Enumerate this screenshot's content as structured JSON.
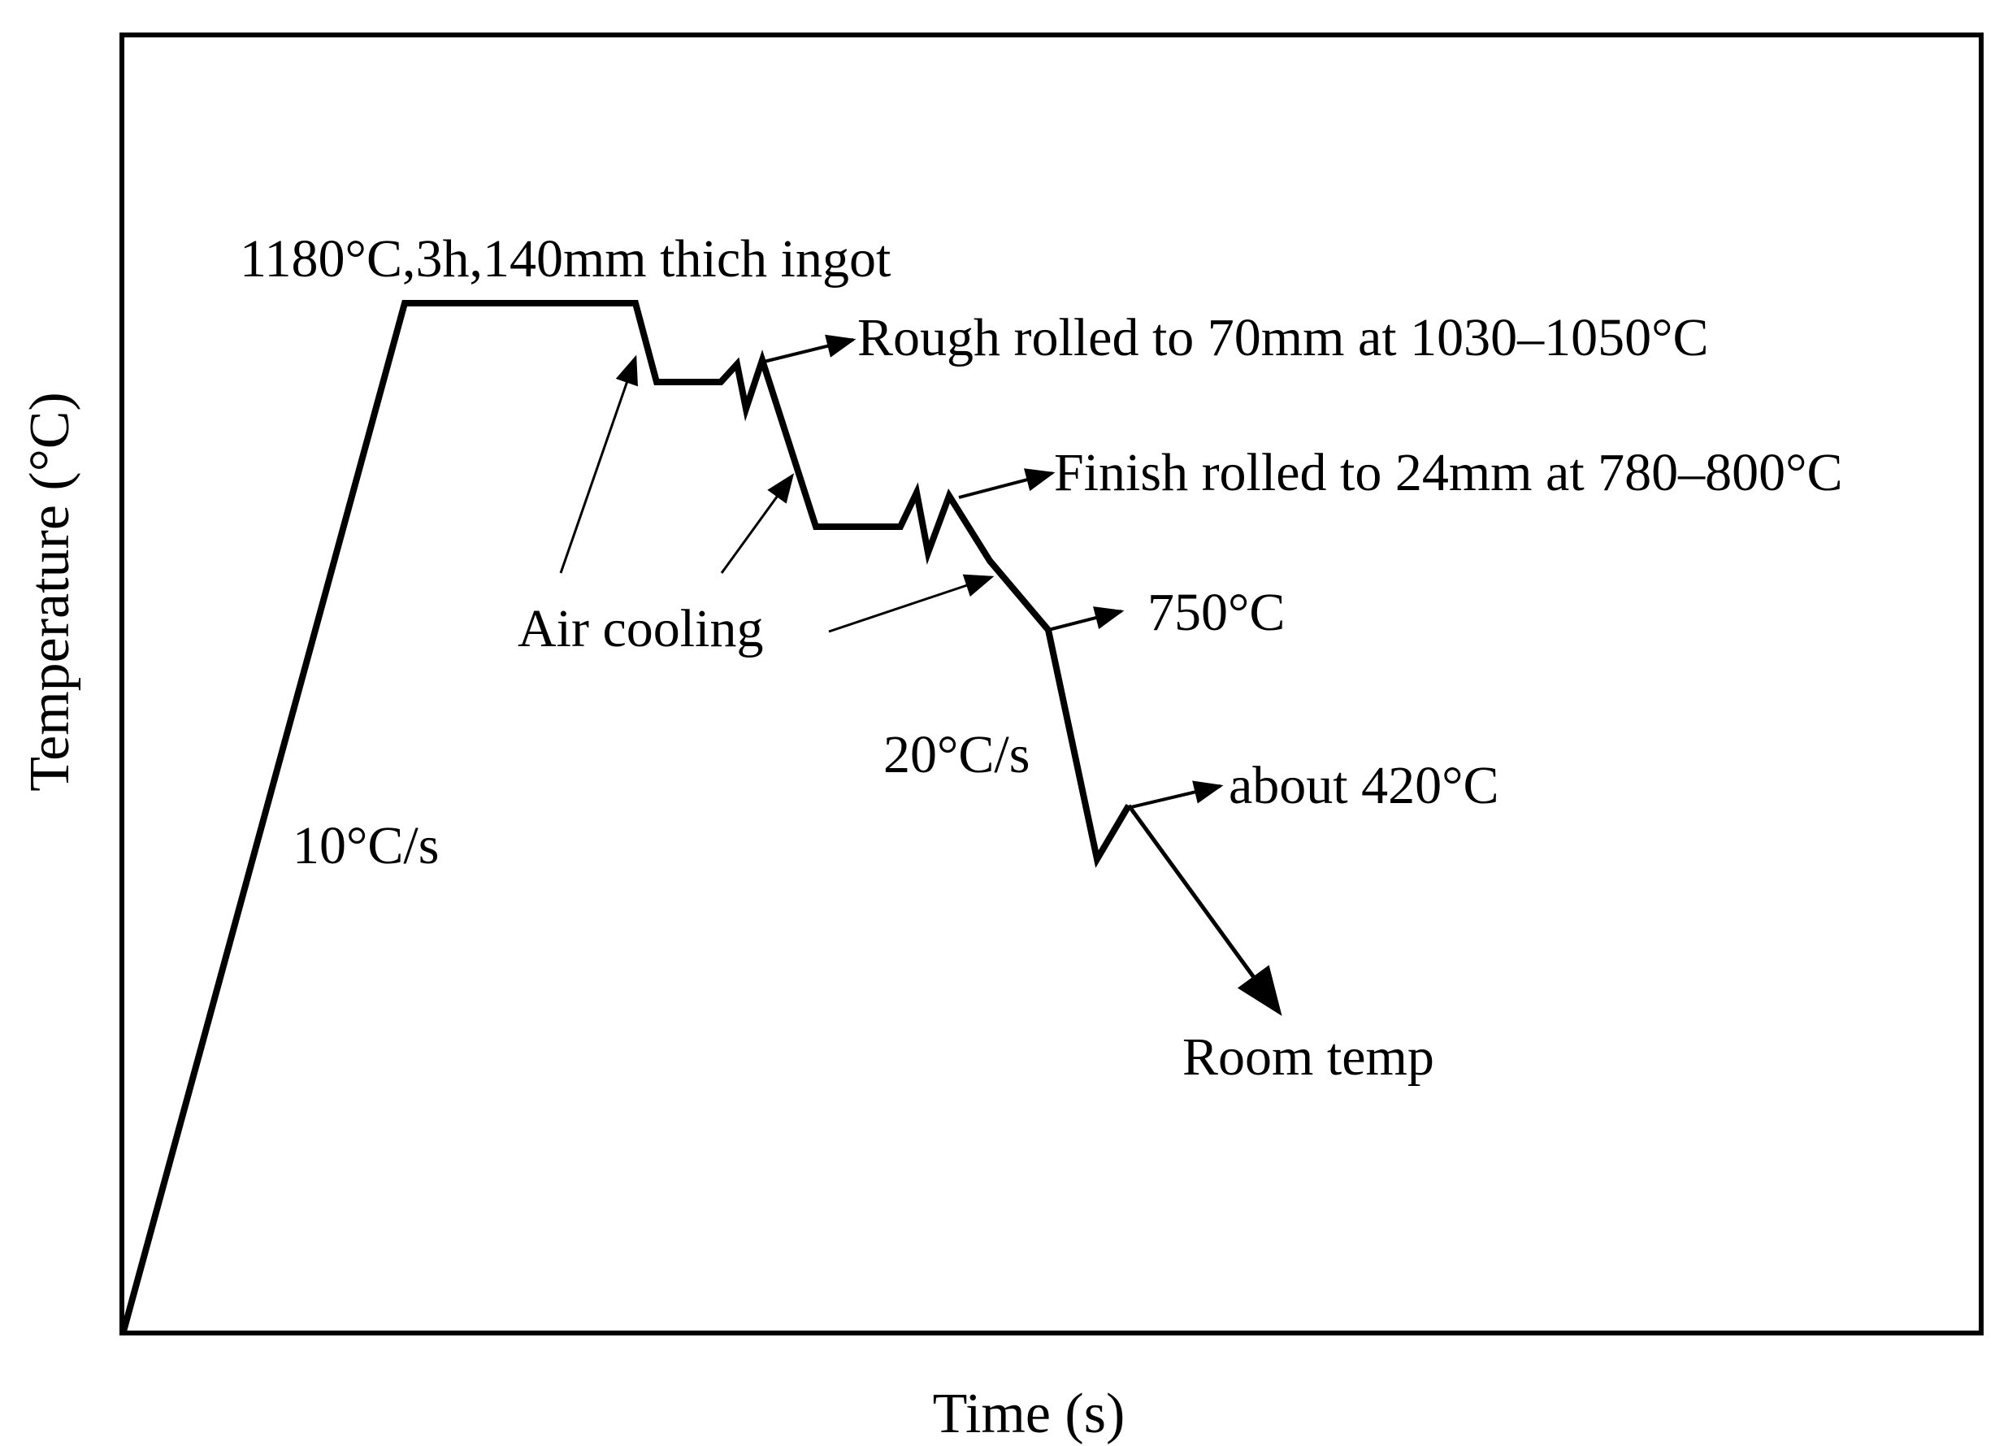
{
  "axes": {
    "xlabel": "Time (s)",
    "ylabel": "Temperature (°C)"
  },
  "annotations": {
    "soak": "1180°C,3h,140mm thich ingot",
    "rough_rolling": "Rough rolled to 70mm at 1030–1050°C",
    "finish_rolling": "Finish rolled to 24mm at 780–800°C",
    "air_cooling": "Air cooling",
    "temp_750": "750°C",
    "rate_20": "20°C/s",
    "temp_420": "about 420°C",
    "rate_10": "10°C/s",
    "room_temp": "Room temp"
  },
  "colors": {
    "line": "#000000",
    "background": "#ffffff"
  }
}
